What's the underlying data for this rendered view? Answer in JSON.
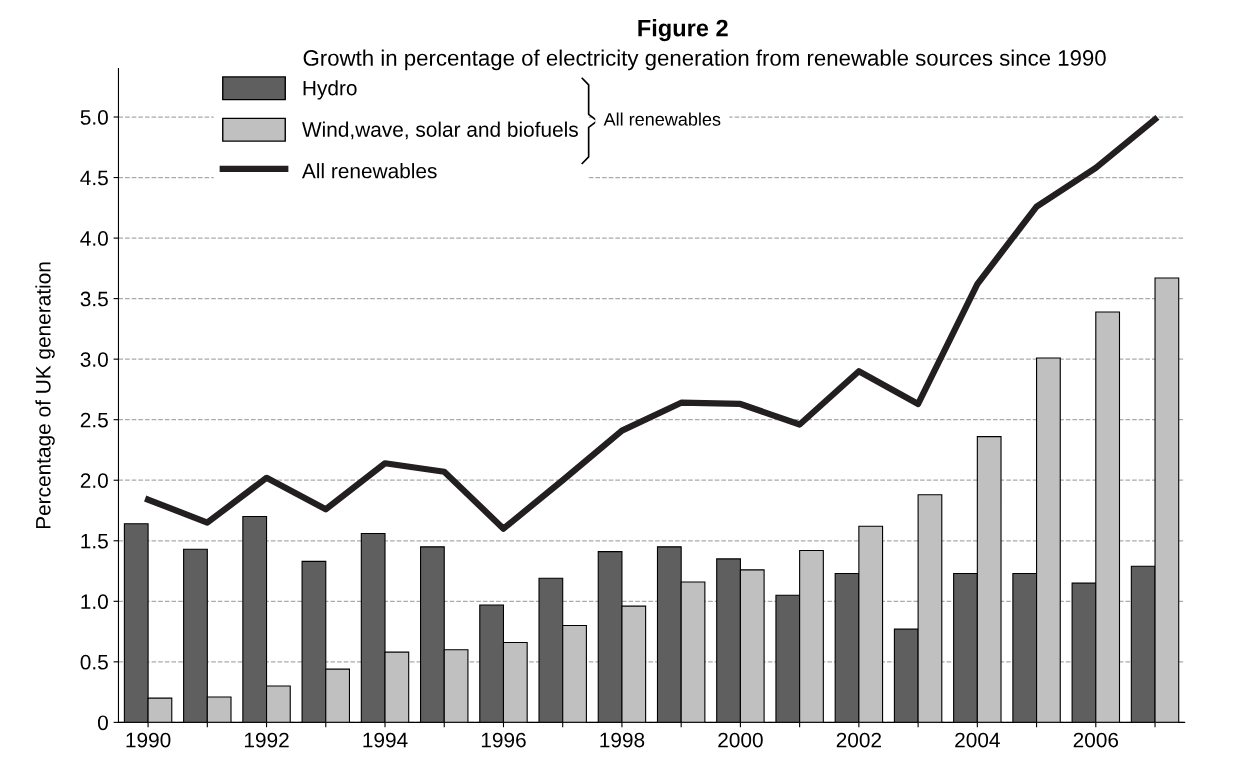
{
  "chart_data": {
    "type": "bar",
    "title": "Figure 2",
    "subtitle": "Growth in percentage of electricity generation from renewable sources since 1990",
    "ylabel": "Percentage of UK generation",
    "categories": [
      "1990",
      null,
      "1992",
      null,
      "1994",
      null,
      "1996",
      null,
      "1998",
      null,
      "2000",
      null,
      "2002",
      null,
      "2004",
      null,
      "2006",
      null
    ],
    "series": [
      {
        "name": "Hydro",
        "color": "#5f5f5f",
        "values": [
          1.64,
          1.43,
          1.7,
          1.33,
          1.56,
          1.45,
          0.97,
          1.19,
          1.41,
          1.45,
          1.35,
          1.05,
          1.23,
          0.77,
          1.23,
          1.23,
          1.15,
          1.29
        ]
      },
      {
        "name": "Wind,wave, solar and biofuels",
        "color": "#c0c0c0",
        "values": [
          0.2,
          0.21,
          0.3,
          0.44,
          0.58,
          0.6,
          0.66,
          0.8,
          0.96,
          1.16,
          1.26,
          1.42,
          1.62,
          1.88,
          2.36,
          3.01,
          3.39,
          3.67
        ]
      },
      {
        "name": "All renewables",
        "type": "line",
        "color": "#231f20",
        "values": [
          1.84,
          1.65,
          2.02,
          1.76,
          2.14,
          2.07,
          1.6,
          2.0,
          2.41,
          2.64,
          2.63,
          2.46,
          2.9,
          2.63,
          3.62,
          4.26,
          4.58,
          4.98
        ]
      }
    ],
    "ylim": [
      0,
      5.4
    ],
    "yticks": [
      0,
      0.5,
      {
        "value": 1,
        "label": "1.0"
      },
      1.5,
      {
        "value": 2,
        "label": "2.0"
      },
      2.5,
      {
        "value": 3,
        "label": "3.0"
      },
      3.5,
      {
        "value": 4,
        "label": "4.0"
      },
      4.5,
      {
        "value": 5,
        "label": "5.0"
      }
    ],
    "grid": "y",
    "legend": "top left",
    "annotations": [
      "All renewables"
    ]
  }
}
